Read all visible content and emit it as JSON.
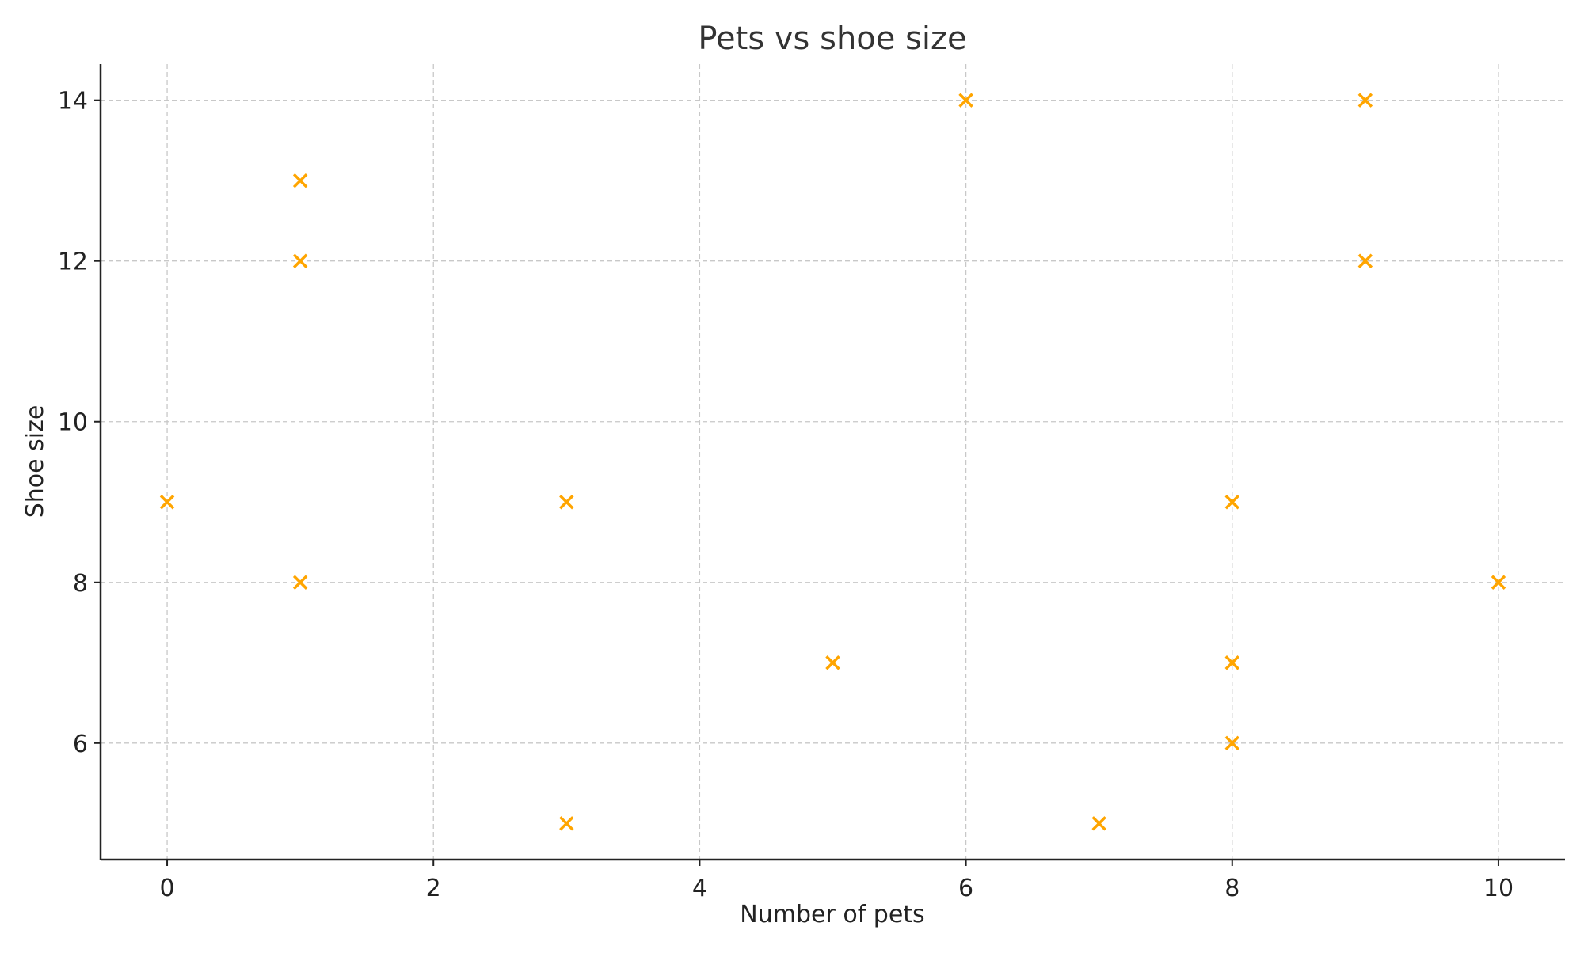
{
  "chart_data": {
    "type": "scatter",
    "title": "Pets vs shoe size",
    "xlabel": "Number of pets",
    "ylabel": "Shoe size",
    "xlim": [
      -0.5,
      10.5
    ],
    "ylim": [
      4.55,
      14.45
    ],
    "xticks": [
      0,
      2,
      4,
      6,
      8,
      10
    ],
    "yticks": [
      6,
      8,
      10,
      12,
      14
    ],
    "grid": true,
    "marker": "x",
    "color": "#FFA500",
    "points": [
      {
        "x": 0,
        "y": 9
      },
      {
        "x": 1,
        "y": 13
      },
      {
        "x": 1,
        "y": 12
      },
      {
        "x": 1,
        "y": 8
      },
      {
        "x": 3,
        "y": 9
      },
      {
        "x": 3,
        "y": 5
      },
      {
        "x": 5,
        "y": 7
      },
      {
        "x": 6,
        "y": 14
      },
      {
        "x": 7,
        "y": 5
      },
      {
        "x": 8,
        "y": 9
      },
      {
        "x": 8,
        "y": 7
      },
      {
        "x": 8,
        "y": 6
      },
      {
        "x": 9,
        "y": 14
      },
      {
        "x": 9,
        "y": 12
      },
      {
        "x": 10,
        "y": 8
      }
    ]
  }
}
